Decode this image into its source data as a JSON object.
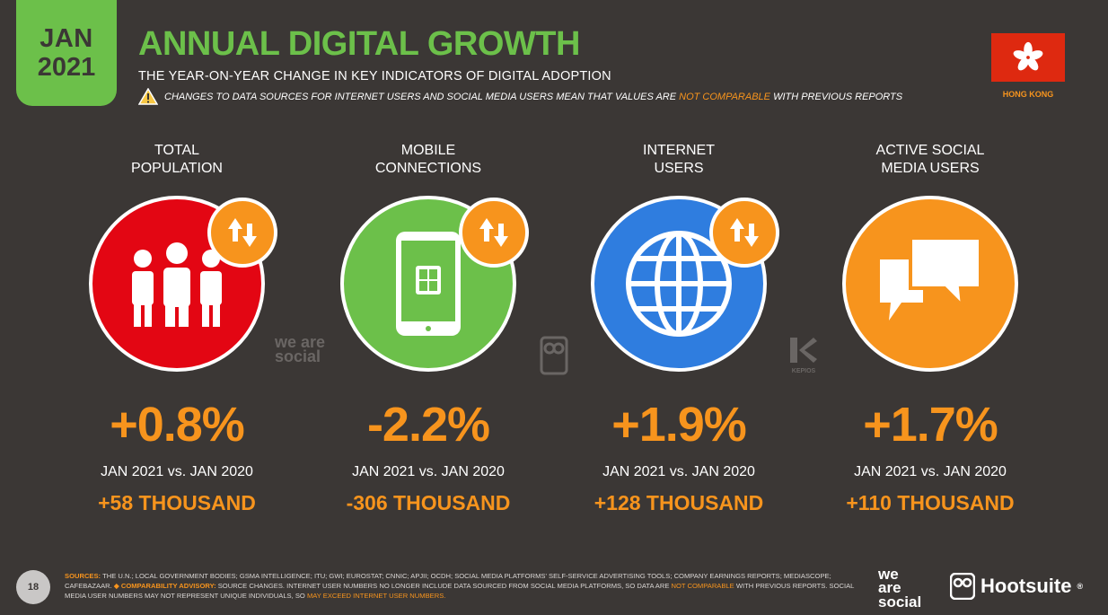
{
  "header": {
    "date_month": "JAN",
    "date_year": "2021",
    "title": "ANNUAL DIGITAL GROWTH",
    "subtitle": "THE YEAR-ON-YEAR CHANGE IN KEY INDICATORS OF DIGITAL ADOPTION",
    "warning_pre": "CHANGES TO DATA SOURCES FOR INTERNET USERS AND SOCIAL MEDIA USERS MEAN THAT VALUES ARE",
    "warning_highlight": "NOT COMPARABLE",
    "warning_post": "WITH PREVIOUS REPORTS",
    "country": "HONG KONG"
  },
  "indicators": [
    {
      "label_line1": "TOTAL",
      "label_line2": "POPULATION",
      "icon": "people-icon",
      "circle_color": "#e30613",
      "value": "+0.8%",
      "period": "JAN 2021 vs. JAN 2020",
      "absolute": "+58 THOUSAND"
    },
    {
      "label_line1": "MOBILE",
      "label_line2": "CONNECTIONS",
      "icon": "mobile-phone-icon",
      "circle_color": "#6cc04a",
      "value": "-2.2%",
      "period": "JAN 2021 vs. JAN 2020",
      "absolute": "-306 THOUSAND"
    },
    {
      "label_line1": "INTERNET",
      "label_line2": "USERS",
      "icon": "globe-icon",
      "circle_color": "#2f7ddf",
      "value": "+1.9%",
      "period": "JAN 2021 vs. JAN 2020",
      "absolute": "+128 THOUSAND"
    },
    {
      "label_line1": "ACTIVE SOCIAL",
      "label_line2": "MEDIA USERS",
      "icon": "chat-bubbles-icon",
      "circle_color": "#f7941d",
      "value": "+1.7%",
      "period": "JAN 2021 vs. JAN 2020",
      "absolute": "+110 THOUSAND"
    }
  ],
  "watermarks": {
    "we_are_social": "we are social",
    "kepios": "KEPIOS"
  },
  "footer": {
    "page_number": "18",
    "sources_label": "SOURCES:",
    "sources_text": "THE U.N.; LOCAL GOVERNMENT BODIES; GSMA INTELLIGENCE; ITU; GWI; EUROSTAT; CNNIC; APJII; OCDH; SOCIAL MEDIA PLATFORMS' SELF-SERVICE ADVERTISING TOOLS; COMPANY EARNINGS REPORTS; MEDIASCOPE; CAFEBAZAAR.",
    "advisory_label": "COMPARABILITY ADVISORY:",
    "advisory_text_1": "SOURCE CHANGES. INTERNET USER NUMBERS NO LONGER INCLUDE DATA SOURCED FROM SOCIAL MEDIA PLATFORMS, SO DATA ARE",
    "advisory_hl_1": "NOT COMPARABLE",
    "advisory_text_2": "WITH PREVIOUS REPORTS. SOCIAL MEDIA USER NUMBERS MAY NOT REPRESENT UNIQUE INDIVIDUALS, SO",
    "advisory_hl_2": "MAY EXCEED INTERNET USER NUMBERS.",
    "logo_was_1": "we",
    "logo_was_2": "are",
    "logo_was_3": "social",
    "logo_hootsuite": "Hootsuite"
  },
  "colors": {
    "background": "#3b3735",
    "accent_green": "#6cc04a",
    "accent_orange": "#f7941d"
  }
}
